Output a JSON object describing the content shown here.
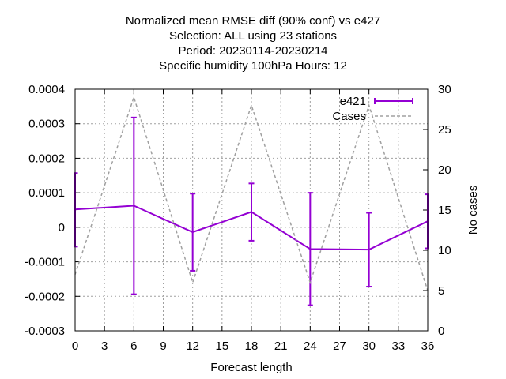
{
  "chart_data": {
    "type": "line",
    "title_lines": [
      "Normalized mean RMSE diff (90% conf) vs e427",
      "Selection: ALL using    23 stations",
      "Period: 20230114-20230214",
      "Specific humidity 100hPa   Hours:  12"
    ],
    "xlabel": "Forecast length",
    "ylabel": "",
    "y2label": "No cases",
    "xlim": [
      0,
      36
    ],
    "ylim": [
      -0.0003,
      0.0004
    ],
    "y2lim": [
      0,
      30
    ],
    "x_ticks": [
      0,
      3,
      6,
      9,
      12,
      15,
      18,
      21,
      24,
      27,
      30,
      33,
      36
    ],
    "y_ticks": [
      -0.0003,
      -0.0002,
      -0.0001,
      0,
      0.0001,
      0.0002,
      0.0003,
      0.0004
    ],
    "y_tick_labels": [
      "-0.0003",
      "-0.0002",
      "-0.0001",
      "0",
      "0.0001",
      "0.0002",
      "0.0003",
      "0.0004"
    ],
    "y2_ticks": [
      0,
      5,
      10,
      15,
      20,
      25,
      30
    ],
    "grid": true,
    "legend_position": "top-right",
    "series": [
      {
        "name": "e421",
        "axis": "left",
        "color": "#9400d3",
        "style": "line-errorbars",
        "x": [
          0,
          6,
          12,
          18,
          24,
          30,
          36
        ],
        "y": [
          5.15e-05,
          6.25e-05,
          -1.4e-05,
          4.45e-05,
          -6.3e-05,
          -6.45e-05,
          1.75e-05
        ],
        "err_low": [
          -5.6e-05,
          -0.000194,
          -0.000126,
          -3.9e-05,
          -0.000226,
          -0.000172,
          -6.1e-05
        ],
        "err_high": [
          0.000157,
          0.000318,
          9.75e-05,
          0.000127,
          0.0001,
          4.2e-05,
          9.55e-05
        ]
      },
      {
        "name": "Cases",
        "axis": "right",
        "color": "#a0a0a0",
        "style": "dashed",
        "x": [
          0,
          6,
          12,
          18,
          24,
          30,
          36
        ],
        "y": [
          7,
          29,
          6,
          28,
          6,
          28,
          5
        ]
      }
    ]
  }
}
